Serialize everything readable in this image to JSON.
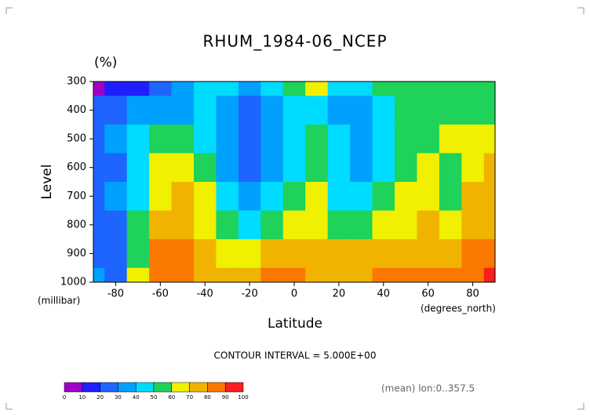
{
  "chart_data": {
    "type": "heatmap",
    "title": "RHUM_1984-06_NCEP",
    "units": "(%)",
    "y_label": "Level",
    "y_units": "(millibar)",
    "x_label": "Latitude",
    "x_units": "(degrees_north)",
    "note": "CONTOUR INTERVAL = 5.000E+00",
    "footnote": "(mean) lon:0..357.5",
    "x": [
      -90,
      -80,
      -70,
      -60,
      -50,
      -40,
      -30,
      -20,
      -10,
      0,
      10,
      20,
      30,
      40,
      50,
      60,
      70,
      80,
      90
    ],
    "y": [
      300,
      400,
      500,
      600,
      700,
      800,
      900,
      1000
    ],
    "values": [
      [
        5,
        15,
        18,
        25,
        30,
        40,
        40,
        35,
        40,
        55,
        60,
        42,
        40,
        50,
        55,
        52,
        52,
        50,
        52
      ],
      [
        25,
        25,
        30,
        30,
        35,
        45,
        30,
        22,
        30,
        45,
        45,
        35,
        30,
        45,
        55,
        52,
        55,
        55,
        52
      ],
      [
        25,
        35,
        40,
        50,
        55,
        45,
        30,
        25,
        35,
        45,
        55,
        40,
        32,
        40,
        55,
        58,
        60,
        62,
        65
      ],
      [
        25,
        25,
        40,
        60,
        62,
        50,
        32,
        25,
        35,
        48,
        55,
        40,
        35,
        45,
        55,
        62,
        55,
        62,
        70
      ],
      [
        20,
        30,
        45,
        65,
        70,
        60,
        40,
        32,
        45,
        58,
        60,
        45,
        40,
        50,
        60,
        68,
        58,
        70,
        72
      ],
      [
        22,
        28,
        50,
        70,
        78,
        65,
        50,
        45,
        58,
        68,
        65,
        55,
        52,
        60,
        68,
        75,
        65,
        72,
        75
      ],
      [
        25,
        22,
        55,
        80,
        82,
        70,
        68,
        66,
        70,
        75,
        72,
        70,
        70,
        72,
        75,
        78,
        75,
        80,
        85
      ],
      [
        30,
        25,
        60,
        85,
        85,
        72,
        72,
        75,
        80,
        82,
        75,
        75,
        78,
        80,
        85,
        85,
        85,
        88,
        92
      ]
    ],
    "xlim": [
      -90,
      90
    ],
    "ylim": [
      1000,
      300
    ],
    "xticks": [
      -80,
      -60,
      -40,
      -20,
      0,
      20,
      40,
      60,
      80
    ],
    "yticks": [
      300,
      400,
      500,
      600,
      700,
      800,
      900,
      1000
    ],
    "levels": [
      0,
      10,
      20,
      30,
      40,
      50,
      60,
      70,
      80,
      90,
      100
    ],
    "colors": [
      "#a000c8",
      "#1e1eff",
      "#1e64ff",
      "#00a0ff",
      "#00dcff",
      "#1ed25a",
      "#f0f000",
      "#f0b400",
      "#fa7800",
      "#fa1e1e"
    ]
  }
}
